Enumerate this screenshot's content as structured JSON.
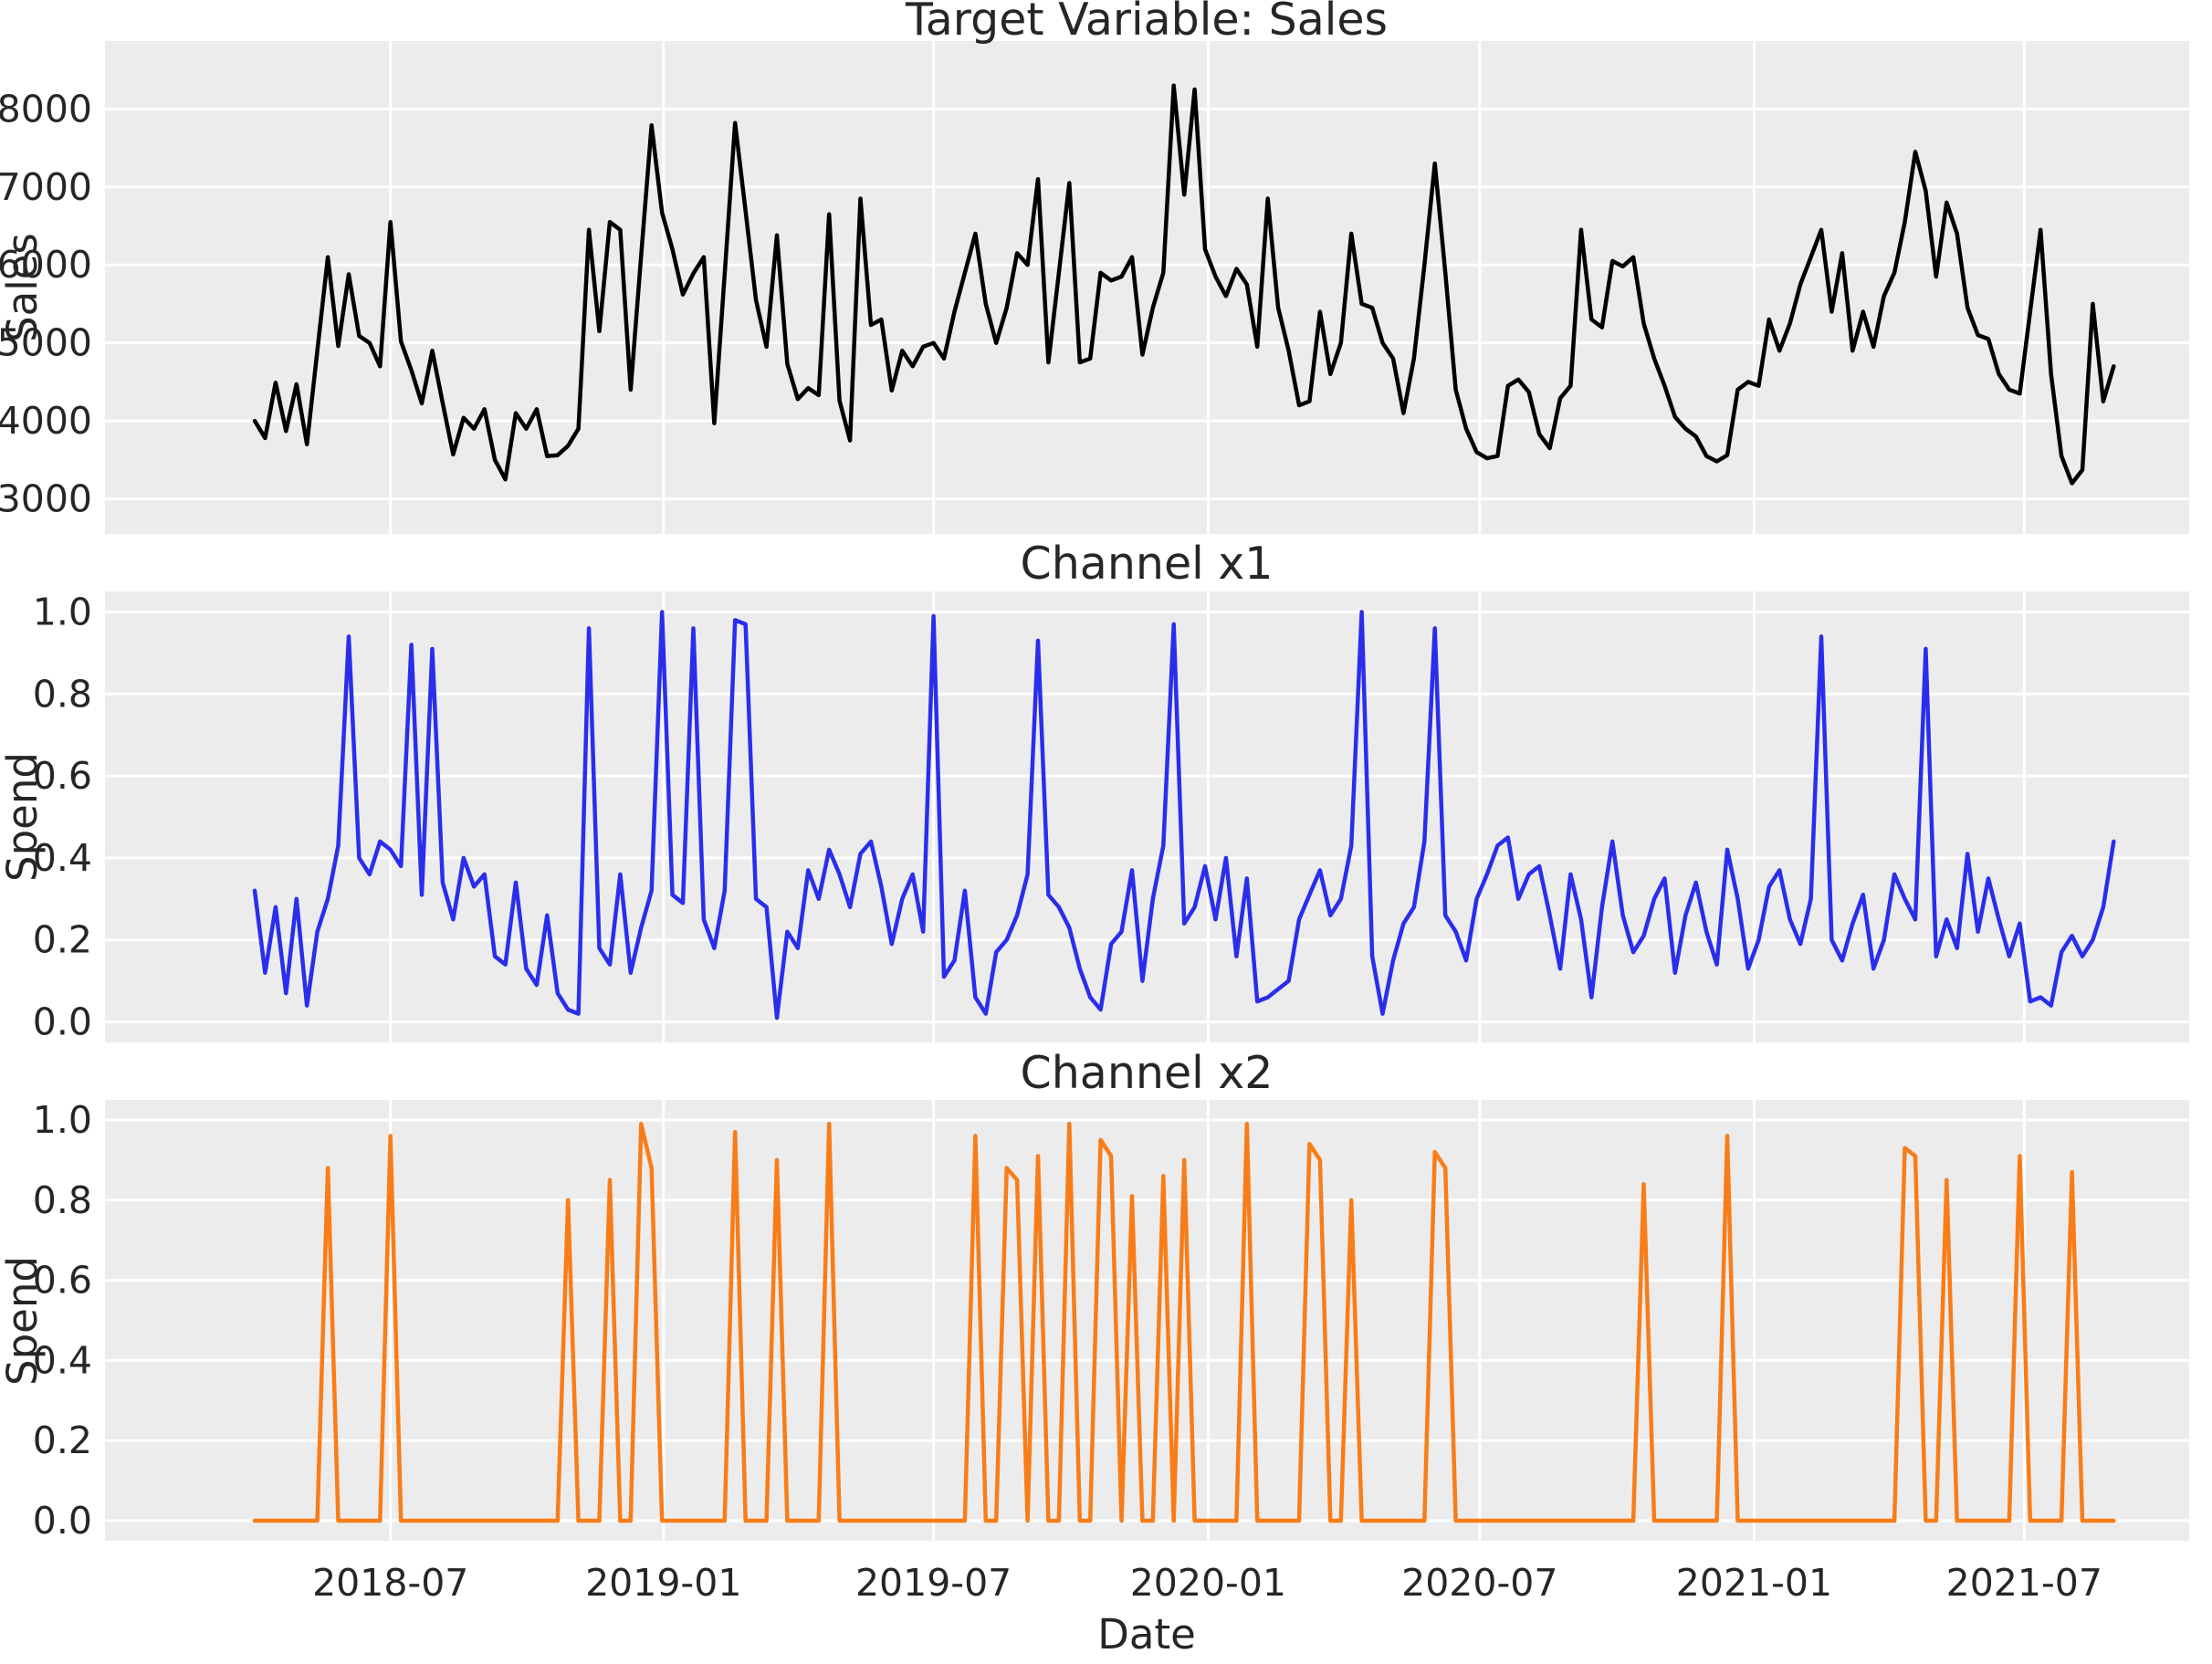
{
  "colors": {
    "figure_background": "#ffffff",
    "panel_background": "#ececec",
    "grid_color": "#ffffff",
    "text_color": "#262626",
    "sales_line": "#000000",
    "x1_line": "#2a2eec",
    "x2_line": "#fa7c17"
  },
  "x_axis": {
    "label": "Date",
    "start_date": "2018-04-02",
    "frequency": "weekly",
    "n_points": 179,
    "ticks": [
      {
        "label": "2018-07",
        "week": 13.0
      },
      {
        "label": "2019-01",
        "week": 39.14
      },
      {
        "label": "2019-07",
        "week": 65.0
      },
      {
        "label": "2020-01",
        "week": 91.29
      },
      {
        "label": "2020-07",
        "week": 117.29
      },
      {
        "label": "2021-01",
        "week": 143.57
      },
      {
        "label": "2021-07",
        "week": 169.43
      }
    ]
  },
  "chart_data": [
    {
      "type": "line",
      "title": "Target Variable: Sales",
      "ylabel": "Sales",
      "series_name": "Sales",
      "line_color": "#000000",
      "grid": true,
      "ylim": [
        2550,
        8870
      ],
      "yticks": [
        3000,
        4000,
        5000,
        6000,
        7000,
        8000
      ],
      "ytick_labels": [
        "3000",
        "4000",
        "5000",
        "6000",
        "7000",
        "8000"
      ],
      "values": [
        4000,
        3780,
        4490,
        3870,
        4470,
        3700,
        4900,
        6100,
        4960,
        5880,
        5090,
        5000,
        4700,
        6550,
        5020,
        4650,
        4225,
        4900,
        4230,
        3570,
        4040,
        3900,
        4150,
        3500,
        3250,
        4100,
        3900,
        4150,
        3550,
        3560,
        3680,
        3900,
        6450,
        5150,
        6550,
        6450,
        4400,
        6120,
        7790,
        6670,
        6200,
        5620,
        5890,
        6100,
        3970,
        5880,
        7820,
        6690,
        5550,
        4950,
        6380,
        4730,
        4280,
        4420,
        4330,
        6650,
        4260,
        3750,
        6850,
        5230,
        5300,
        4390,
        4900,
        4700,
        4950,
        5000,
        4800,
        5400,
        5900,
        6400,
        5500,
        5000,
        5450,
        6150,
        6000,
        7100,
        4750,
        5900,
        7050,
        4750,
        4800,
        5900,
        5800,
        5850,
        6100,
        4850,
        5450,
        5900,
        8300,
        6900,
        8250,
        6200,
        5850,
        5600,
        5950,
        5750,
        4950,
        6850,
        5450,
        4900,
        4200,
        4250,
        5400,
        4600,
        5000,
        6400,
        5500,
        5450,
        5000,
        4800,
        4100,
        4800,
        6000,
        7300,
        5900,
        4400,
        3900,
        3600,
        3520,
        3550,
        4450,
        4530,
        4370,
        3830,
        3650,
        4290,
        4450,
        6450,
        5300,
        5200,
        6050,
        5980,
        6100,
        5250,
        4800,
        4450,
        4050,
        3900,
        3800,
        3550,
        3480,
        3560,
        4400,
        4500,
        4450,
        5300,
        4900,
        5250,
        5750,
        6100,
        6450,
        5400,
        6150,
        4900,
        5400,
        4950,
        5600,
        5900,
        6550,
        7450,
        6950,
        5850,
        6800,
        6400,
        5450,
        5100,
        5050,
        4600,
        4400,
        4350,
        5400,
        6450,
        4600,
        3550,
        3200,
        3370,
        5500,
        4250,
        4700
      ]
    },
    {
      "type": "line",
      "title": "Channel x1",
      "ylabel": "Spend",
      "series_name": "x1",
      "line_color": "#2a2eec",
      "grid": true,
      "ylim": [
        -0.05,
        1.05
      ],
      "yticks": [
        0.0,
        0.2,
        0.4,
        0.6,
        0.8,
        1.0
      ],
      "ytick_labels": [
        "0.0",
        "0.2",
        "0.4",
        "0.6",
        "0.8",
        "1.0"
      ],
      "values": [
        0.32,
        0.12,
        0.28,
        0.07,
        0.3,
        0.04,
        0.22,
        0.3,
        0.43,
        0.94,
        0.4,
        0.36,
        0.44,
        0.42,
        0.38,
        0.92,
        0.31,
        0.91,
        0.34,
        0.25,
        0.4,
        0.33,
        0.36,
        0.16,
        0.14,
        0.34,
        0.13,
        0.09,
        0.26,
        0.07,
        0.03,
        0.02,
        0.96,
        0.18,
        0.14,
        0.36,
        0.12,
        0.23,
        0.32,
        1.0,
        0.31,
        0.29,
        0.96,
        0.25,
        0.18,
        0.32,
        0.98,
        0.97,
        0.3,
        0.28,
        0.01,
        0.22,
        0.18,
        0.37,
        0.3,
        0.42,
        0.36,
        0.28,
        0.41,
        0.44,
        0.33,
        0.19,
        0.3,
        0.36,
        0.22,
        0.99,
        0.11,
        0.15,
        0.32,
        0.06,
        0.02,
        0.17,
        0.2,
        0.26,
        0.36,
        0.93,
        0.31,
        0.28,
        0.23,
        0.13,
        0.06,
        0.03,
        0.19,
        0.22,
        0.37,
        0.1,
        0.3,
        0.43,
        0.97,
        0.24,
        0.28,
        0.38,
        0.25,
        0.4,
        0.16,
        0.35,
        0.05,
        0.06,
        0.08,
        0.1,
        0.25,
        0.31,
        0.37,
        0.26,
        0.3,
        0.43,
        1.0,
        0.16,
        0.02,
        0.15,
        0.24,
        0.28,
        0.44,
        0.96,
        0.26,
        0.22,
        0.15,
        0.3,
        0.36,
        0.43,
        0.45,
        0.3,
        0.36,
        0.38,
        0.26,
        0.13,
        0.36,
        0.25,
        0.06,
        0.28,
        0.44,
        0.26,
        0.17,
        0.21,
        0.3,
        0.35,
        0.12,
        0.26,
        0.34,
        0.22,
        0.14,
        0.42,
        0.3,
        0.13,
        0.2,
        0.33,
        0.37,
        0.25,
        0.19,
        0.3,
        0.94,
        0.2,
        0.15,
        0.24,
        0.31,
        0.13,
        0.2,
        0.36,
        0.3,
        0.25,
        0.91,
        0.16,
        0.25,
        0.18,
        0.41,
        0.22,
        0.35,
        0.25,
        0.16,
        0.24,
        0.05,
        0.06,
        0.04,
        0.17,
        0.21,
        0.16,
        0.2,
        0.28,
        0.44
      ]
    },
    {
      "type": "line",
      "title": "Channel x2",
      "ylabel": "Spend",
      "series_name": "x2",
      "line_color": "#fa7c17",
      "grid": true,
      "ylim": [
        -0.05,
        1.05
      ],
      "yticks": [
        0.0,
        0.2,
        0.4,
        0.6,
        0.8,
        1.0
      ],
      "ytick_labels": [
        "0.0",
        "0.2",
        "0.4",
        "0.6",
        "0.8",
        "1.0"
      ],
      "values": [
        0,
        0,
        0,
        0,
        0,
        0,
        0,
        0.88,
        0,
        0,
        0,
        0,
        0,
        0.96,
        0,
        0,
        0,
        0,
        0,
        0,
        0,
        0,
        0,
        0,
        0,
        0,
        0,
        0,
        0,
        0,
        0.8,
        0,
        0,
        0,
        0.85,
        0,
        0,
        0.99,
        0.88,
        0,
        0,
        0,
        0,
        0,
        0,
        0,
        0.97,
        0,
        0,
        0,
        0.9,
        0,
        0,
        0,
        0,
        0.99,
        0,
        0,
        0,
        0,
        0,
        0,
        0,
        0,
        0,
        0,
        0,
        0,
        0,
        0.96,
        0,
        0,
        0.88,
        0.85,
        0,
        0.91,
        0,
        0,
        0.99,
        0,
        0,
        0.95,
        0.91,
        0,
        0.81,
        0,
        0,
        0.86,
        0,
        0.9,
        0,
        0,
        0,
        0,
        0,
        0.99,
        0,
        0,
        0,
        0,
        0,
        0.94,
        0.9,
        0,
        0,
        0.8,
        0,
        0,
        0,
        0,
        0,
        0,
        0,
        0.92,
        0.88,
        0,
        0,
        0,
        0,
        0,
        0,
        0,
        0,
        0,
        0,
        0,
        0,
        0,
        0,
        0,
        0,
        0,
        0,
        0.84,
        0,
        0,
        0,
        0,
        0,
        0,
        0,
        0.96,
        0,
        0,
        0,
        0,
        0,
        0,
        0,
        0,
        0,
        0,
        0,
        0,
        0,
        0,
        0,
        0,
        0.93,
        0.91,
        0,
        0,
        0.85,
        0,
        0,
        0,
        0,
        0,
        0,
        0.91,
        0,
        0,
        0,
        0,
        0.87,
        0,
        0,
        0,
        0
      ]
    }
  ]
}
